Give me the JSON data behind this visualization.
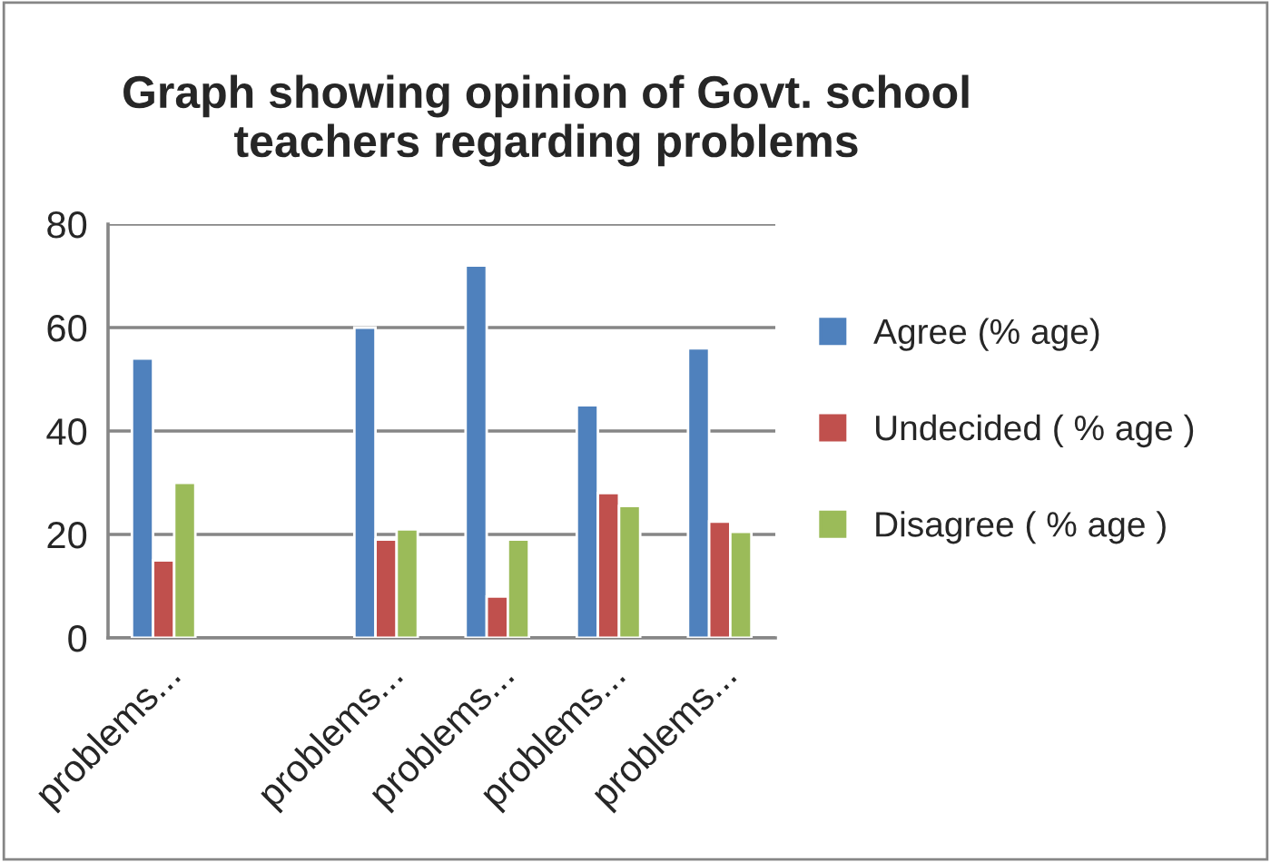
{
  "chart_data": {
    "type": "bar",
    "title": "Graph showing opinion of Govt. school teachers regarding problems",
    "categories": [
      "problems...",
      null,
      "problems...",
      "problems...",
      "problems...",
      "problems..."
    ],
    "series": [
      {
        "name": "Agree (% age)",
        "color": "#4f81bd",
        "values": [
          54,
          null,
          60,
          72,
          45,
          56
        ]
      },
      {
        "name": "Undecided ( % age )",
        "color": "#c0504d",
        "values": [
          15,
          null,
          19,
          8,
          28,
          22.5
        ]
      },
      {
        "name": "Disagree ( % age )",
        "color": "#9bbb59",
        "values": [
          30,
          null,
          21,
          19,
          25.5,
          20.5
        ]
      }
    ],
    "ylim": [
      0,
      80
    ],
    "yticks": [
      0,
      20,
      40,
      60,
      80
    ],
    "grid": "y",
    "legend": "right"
  }
}
